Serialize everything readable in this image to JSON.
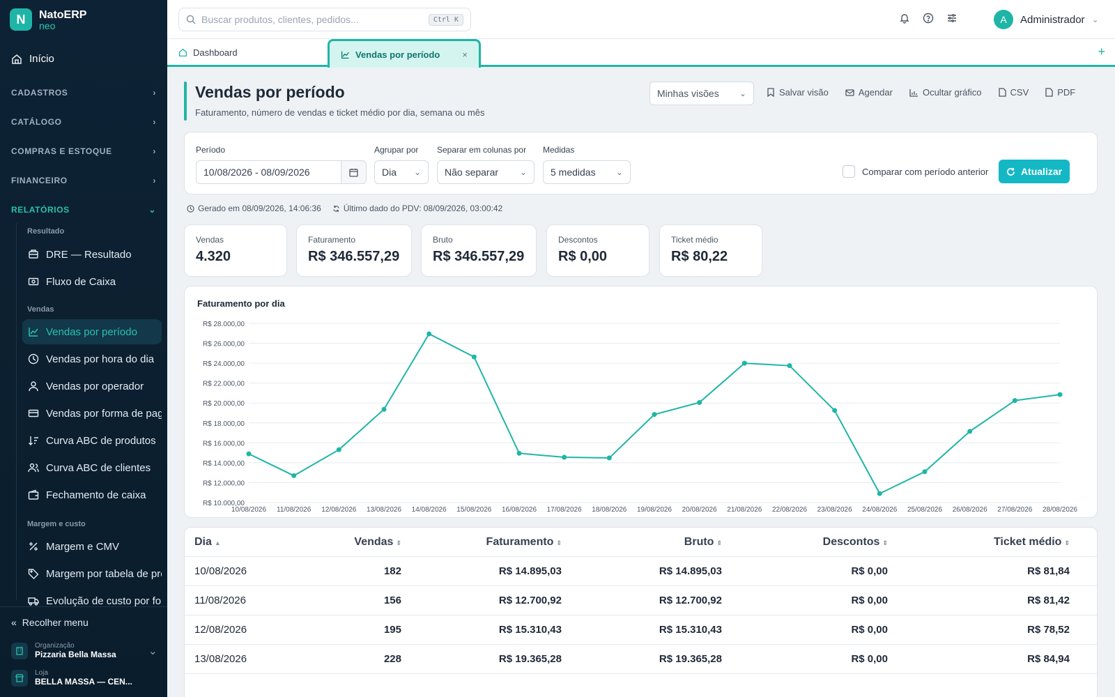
{
  "brand": {
    "logo_letter": "N",
    "name": "NatoERP",
    "sub": "neo"
  },
  "sidebar": {
    "home": "Início",
    "sections": [
      "CADASTROS",
      "CATÁLOGO",
      "COMPRAS E ESTOQUE",
      "FINANCEIRO",
      "RELATÓRIOS"
    ],
    "groups": [
      "Resultado",
      "Vendas",
      "Margem e custo"
    ],
    "items": [
      "DRE — Resultado",
      "Fluxo de Caixa",
      "Vendas por período",
      "Vendas por hora do dia",
      "Vendas por operador",
      "Vendas por forma de pagamento",
      "Curva ABC de produtos",
      "Curva ABC de clientes",
      "Fechamento de caixa",
      "Margem e CMV",
      "Margem por tabela de preço",
      "Evolução de custo por fornecedor"
    ],
    "collapse": "Recolher menu",
    "org_label": "Organização",
    "org_value": "Pizzaria Bella Massa",
    "store_label": "Loja",
    "store_value": "BELLA MASSA — CEN..."
  },
  "topbar": {
    "search_placeholder": "Buscar produtos, clientes, pedidos...",
    "search_shortcut": "Ctrl K",
    "avatar_letter": "A",
    "user": "Administrador"
  },
  "tabs": {
    "dashboard": "Dashboard",
    "active": "Vendas por período",
    "close": "×",
    "add": "+"
  },
  "page": {
    "title": "Vendas por período",
    "subtitle": "Faturamento, número de vendas e ticket médio por dia, semana ou mês",
    "views": "Minhas visões",
    "actions": [
      "Salvar visão",
      "Agendar",
      "Ocultar gráfico",
      "CSV",
      "PDF"
    ]
  },
  "filters": {
    "period_label": "Período",
    "period_value": "10/08/2026 - 08/09/2026",
    "group_label": "Agrupar por",
    "group_value": "Dia",
    "split_label": "Separar em colunas por",
    "split_value": "Não separar",
    "measures_label": "Medidas",
    "measures_value": "5 medidas",
    "compare_label": "Comparar com período anterior",
    "refresh": "Atualizar"
  },
  "meta": {
    "generated": "Gerado em 08/09/2026, 14:06:36",
    "last_pdv": "Último dado do PDV: 08/09/2026, 03:00:42"
  },
  "kpis": [
    {
      "label": "Vendas",
      "value": "4.320"
    },
    {
      "label": "Faturamento",
      "value": "R$ 346.557,29"
    },
    {
      "label": "Bruto",
      "value": "R$ 346.557,29"
    },
    {
      "label": "Descontos",
      "value": "R$ 0,00"
    },
    {
      "label": "Ticket médio",
      "value": "R$ 80,22"
    }
  ],
  "chart_data": {
    "type": "line",
    "title": "Faturamento por dia",
    "color": "#1fb5a6",
    "ylim": [
      10000,
      28000
    ],
    "y_ticks": [
      "R$ 10.000,00",
      "R$ 12.000,00",
      "R$ 14.000,00",
      "R$ 16.000,00",
      "R$ 18.000,00",
      "R$ 20.000,00",
      "R$ 22.000,00",
      "R$ 24.000,00",
      "R$ 26.000,00",
      "R$ 28.000,00"
    ],
    "x": [
      "10/08/2026",
      "11/08/2026",
      "12/08/2026",
      "13/08/2026",
      "14/08/2026",
      "15/08/2026",
      "16/08/2026",
      "17/08/2026",
      "18/08/2026",
      "19/08/2026",
      "20/08/2026",
      "21/08/2026",
      "22/08/2026",
      "23/08/2026",
      "24/08/2026",
      "25/08/2026",
      "26/08/2026",
      "27/08/2026",
      "28/08/2026"
    ],
    "values": [
      14895,
      12701,
      15310,
      19365,
      26950,
      24630,
      14950,
      14550,
      14480,
      18850,
      20050,
      24000,
      23750,
      19250,
      10900,
      13100,
      17150,
      20250,
      20850
    ]
  },
  "table": {
    "headers": [
      "Dia",
      "Vendas",
      "Faturamento",
      "Bruto",
      "Descontos",
      "Ticket médio"
    ],
    "rows": [
      [
        "10/08/2026",
        "182",
        "R$ 14.895,03",
        "R$ 14.895,03",
        "R$ 0,00",
        "R$ 81,84"
      ],
      [
        "11/08/2026",
        "156",
        "R$ 12.700,92",
        "R$ 12.700,92",
        "R$ 0,00",
        "R$ 81,42"
      ],
      [
        "12/08/2026",
        "195",
        "R$ 15.310,43",
        "R$ 15.310,43",
        "R$ 0,00",
        "R$ 78,52"
      ],
      [
        "13/08/2026",
        "228",
        "R$ 19.365,28",
        "R$ 19.365,28",
        "R$ 0,00",
        "R$ 84,94"
      ]
    ]
  }
}
